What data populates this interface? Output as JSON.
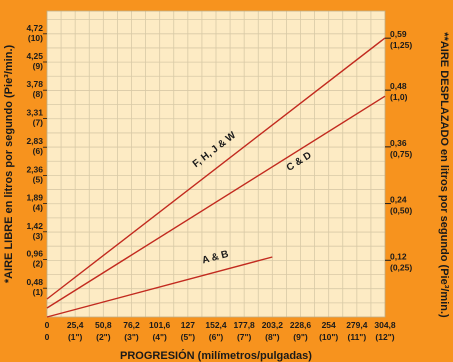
{
  "chart_data": {
    "type": "line",
    "x": [
      0,
      25.4,
      50.8,
      76.2,
      101.6,
      127,
      152.4,
      177.8,
      203.2,
      228.6,
      254,
      279.4,
      304.8
    ],
    "x_tick_labels": [
      "0",
      "25,4",
      "50,8",
      "76,2",
      "101,6",
      "127",
      "152,4",
      "177,8",
      "203,2",
      "228,6",
      "254",
      "279,4",
      "304,8"
    ],
    "x_tick_labels_secondary": [
      "0",
      "(1\")",
      "(2\")",
      "(3\")",
      "(4\")",
      "(5\")",
      "(6\")",
      "(7\")",
      "(8\")",
      "(9\")",
      "(10\")",
      "(11\")",
      "(12\")"
    ],
    "xlabel": "PROGRESIÓN (milímetros/pulgadas)",
    "xlim": [
      0,
      304.8
    ],
    "y_left_ticks": [
      {
        "value": 0.48,
        "label": "0,48",
        "sub": "(1)"
      },
      {
        "value": 0.96,
        "label": "0,96",
        "sub": "(2)"
      },
      {
        "value": 1.42,
        "label": "1,42",
        "sub": "(3)"
      },
      {
        "value": 1.89,
        "label": "1,89",
        "sub": "(4)"
      },
      {
        "value": 2.36,
        "label": "2,36",
        "sub": "(5)"
      },
      {
        "value": 2.83,
        "label": "2,83",
        "sub": "(6)"
      },
      {
        "value": 3.31,
        "label": "3,31",
        "sub": "(7)"
      },
      {
        "value": 3.78,
        "label": "3,78",
        "sub": "(8)"
      },
      {
        "value": 4.25,
        "label": "4,25",
        "sub": "(9)"
      },
      {
        "value": 4.72,
        "label": "4,72",
        "sub": "(10)"
      }
    ],
    "ylabel_left": "*AIRE LIBRE en litros por segundo (Pie³/min.)",
    "ylim": [
      0,
      5.1
    ],
    "y_right_ticks": [
      {
        "value": 0.12,
        "label": "0,12",
        "sub": "(0,25)"
      },
      {
        "value": 0.24,
        "label": "0,24",
        "sub": "(0,50)"
      },
      {
        "value": 0.36,
        "label": "0,36",
        "sub": "(0,75)"
      },
      {
        "value": 0.48,
        "label": "0,48",
        "sub": "(1,0)"
      },
      {
        "value": 0.59,
        "label": "0,59",
        "sub": "(1,25)"
      }
    ],
    "ylabel_right": "**AIRE DESPLAZADO en litros por segundo (Pie³/min.)",
    "y2lim": [
      0,
      0.6475
    ],
    "grid": true,
    "series": [
      {
        "name": "F, H, J & W",
        "points": [
          [
            0,
            0.3
          ],
          [
            304.8,
            4.65
          ]
        ],
        "label_at": [
          152.4,
          2.75
        ]
      },
      {
        "name": "C & D",
        "points": [
          [
            0,
            0.15
          ],
          [
            304.8,
            3.68
          ]
        ],
        "label_at": [
          228.6,
          2.55
        ]
      },
      {
        "name": "A & B",
        "points": [
          [
            0,
            0.0
          ],
          [
            203.2,
            1.0
          ]
        ],
        "label_at": [
          152.4,
          0.95
        ]
      }
    ],
    "colors": {
      "background": "#f7931e",
      "plot": "#fdebc4",
      "grid": "#d8c9a6",
      "line": "#c22a1f"
    }
  }
}
